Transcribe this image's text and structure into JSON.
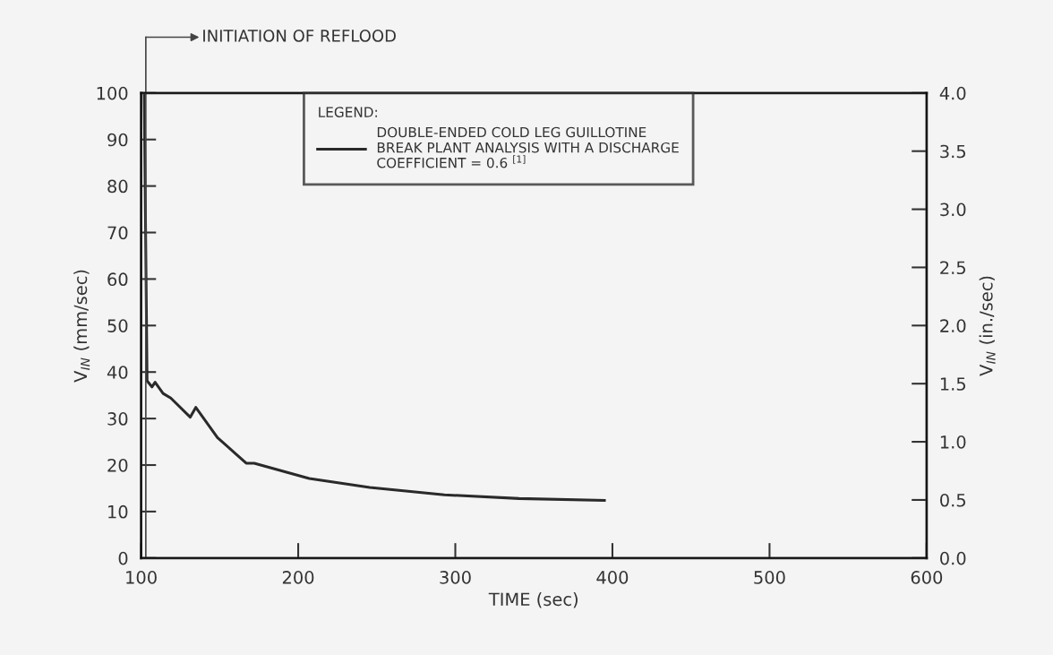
{
  "chart_data": {
    "type": "line",
    "xlabel": "TIME (sec)",
    "ylabel": "V$_{IN}$ (mm/sec)",
    "y2label": "V$_{IN}$ (in./sec)",
    "legend_title": "LEGEND:",
    "x": [
      102,
      103.8,
      106.9,
      108.9,
      114,
      118.9,
      131.3,
      134.8,
      148.6,
      166.9,
      172,
      207,
      245.5,
      293,
      340.6,
      394.9
    ],
    "series": [
      {
        "name": "DOUBLE-ENDED COLD LEG GUILLOTINE\nBREAK PLANT ANALYSIS WITH A DISCHARGE\nCOEFFICIENT = 0.6 $^{[1]}$",
        "color": "#2a2a2a",
        "values": [
          100,
          38.1,
          36.8,
          37.8,
          35.4,
          34.4,
          30.3,
          32.4,
          25.9,
          20.4,
          20.4,
          17.1,
          15.2,
          13.6,
          12.8,
          12.4
        ]
      }
    ],
    "xlim": [
      100,
      600
    ],
    "xticks": [
      100,
      200,
      300,
      400,
      500,
      600
    ],
    "ylim": [
      0,
      100
    ],
    "yticks": [
      0,
      10,
      20,
      30,
      40,
      50,
      60,
      70,
      80,
      90,
      100
    ],
    "y2lim": [
      0,
      4
    ],
    "y2ticks": [
      {
        "value": 0,
        "label": "0.0"
      },
      {
        "value": 0.5,
        "label": "0.5"
      },
      {
        "value": 1,
        "label": "1.0"
      },
      {
        "value": 1.5,
        "label": "1.5"
      },
      {
        "value": 2,
        "label": "2.0"
      },
      {
        "value": 2.5,
        "label": "2.5"
      },
      {
        "value": 3,
        "label": "3.0"
      },
      {
        "value": 3.5,
        "label": "3.5"
      },
      {
        "value": 4,
        "label": "4.0"
      }
    ],
    "ref_lines": [
      {
        "axis": "x",
        "value": 103,
        "label": "INITIATION OF REFLOOD",
        "color": "#444444"
      }
    ],
    "legend": "top",
    "grid": false,
    "marker": "none",
    "line_style": "solid"
  }
}
